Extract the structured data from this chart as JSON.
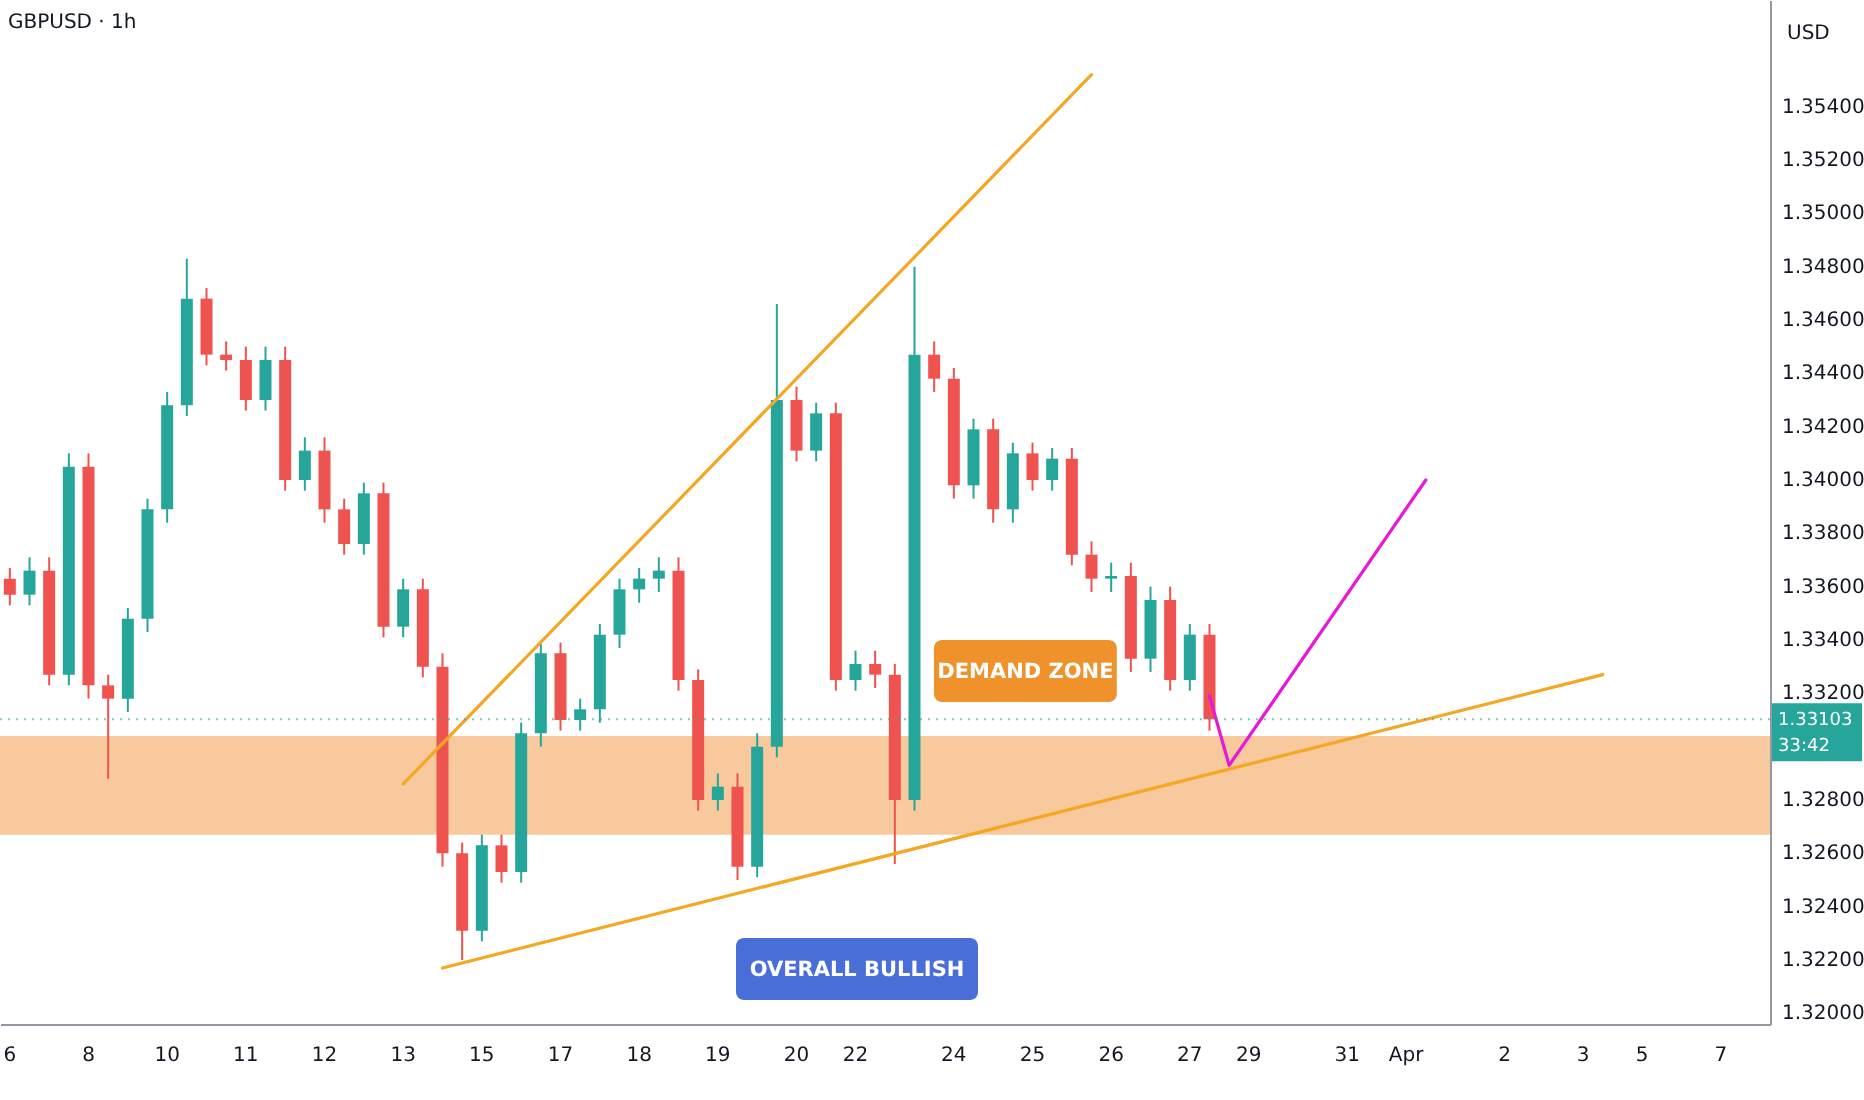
{
  "chart_data": {
    "type": "candlestick",
    "title": "GBPUSD · 1h",
    "ylabel": "USD",
    "categories": [
      "6",
      null,
      null,
      null,
      "8",
      null,
      null,
      null,
      "10",
      null,
      null,
      null,
      "11",
      null,
      null,
      null,
      "12",
      null,
      null,
      null,
      "13",
      null,
      null,
      null,
      "15",
      null,
      null,
      null,
      "17",
      null,
      null,
      null,
      "18",
      null,
      null,
      null,
      "19",
      null,
      null,
      null,
      "20",
      null,
      null,
      "22",
      null,
      null,
      null,
      null,
      "24",
      null,
      null,
      null,
      "25",
      null,
      null,
      null,
      "26",
      null,
      null,
      null,
      "27",
      null,
      null,
      "29",
      null,
      null,
      null,
      null,
      "31",
      null,
      null,
      "Apr",
      null,
      null,
      null,
      null,
      "2",
      null,
      null,
      null,
      "3",
      null,
      null,
      "5",
      null,
      null,
      null,
      "7",
      null,
      null
    ],
    "ohlc": [
      [
        1.3363,
        1.3367,
        1.3353,
        1.3357
      ],
      [
        1.3357,
        1.3371,
        1.3353,
        1.3366
      ],
      [
        1.3366,
        1.3371,
        1.3323,
        1.3327
      ],
      [
        1.3327,
        1.341,
        1.3323,
        1.3405
      ],
      [
        1.3405,
        1.341,
        1.3318,
        1.3323
      ],
      [
        1.3323,
        1.3327,
        1.3288,
        1.3318
      ],
      [
        1.3318,
        1.3352,
        1.3313,
        1.3348
      ],
      [
        1.3348,
        1.3393,
        1.3343,
        1.3389
      ],
      [
        1.3389,
        1.3433,
        1.3384,
        1.3428
      ],
      [
        1.3428,
        1.3483,
        1.3424,
        1.3468
      ],
      [
        1.3468,
        1.3472,
        1.3443,
        1.3447
      ],
      [
        1.3447,
        1.3452,
        1.3441,
        1.3445
      ],
      [
        1.3445,
        1.345,
        1.3426,
        1.343
      ],
      [
        1.343,
        1.345,
        1.3426,
        1.3445
      ],
      [
        1.3445,
        1.345,
        1.3396,
        1.34
      ],
      [
        1.34,
        1.3416,
        1.3396,
        1.3411
      ],
      [
        1.3411,
        1.3416,
        1.3384,
        1.3389
      ],
      [
        1.3389,
        1.3393,
        1.3372,
        1.3376
      ],
      [
        1.3376,
        1.3399,
        1.3372,
        1.3395
      ],
      [
        1.3395,
        1.3399,
        1.3341,
        1.3345
      ],
      [
        1.3345,
        1.3363,
        1.3341,
        1.3359
      ],
      [
        1.3359,
        1.3363,
        1.3326,
        1.333
      ],
      [
        1.333,
        1.3335,
        1.3255,
        1.326
      ],
      [
        1.326,
        1.3264,
        1.322,
        1.3231
      ],
      [
        1.3231,
        1.3267,
        1.3227,
        1.3263
      ],
      [
        1.3263,
        1.3267,
        1.3249,
        1.3253
      ],
      [
        1.3253,
        1.3309,
        1.3249,
        1.3305
      ],
      [
        1.3305,
        1.3339,
        1.33,
        1.3335
      ],
      [
        1.3335,
        1.3339,
        1.3306,
        1.331
      ],
      [
        1.331,
        1.3318,
        1.3306,
        1.3314
      ],
      [
        1.3314,
        1.3346,
        1.3309,
        1.3342
      ],
      [
        1.3342,
        1.3363,
        1.3337,
        1.3359
      ],
      [
        1.3359,
        1.3367,
        1.3354,
        1.3363
      ],
      [
        1.3363,
        1.3371,
        1.3358,
        1.3366
      ],
      [
        1.3366,
        1.3371,
        1.3321,
        1.3325
      ],
      [
        1.3325,
        1.3329,
        1.3276,
        1.328
      ],
      [
        1.328,
        1.329,
        1.3276,
        1.3285
      ],
      [
        1.3285,
        1.329,
        1.325,
        1.3255
      ],
      [
        1.3255,
        1.3305,
        1.3251,
        1.33
      ],
      [
        1.33,
        1.3466,
        1.3296,
        1.343
      ],
      [
        1.343,
        1.3435,
        1.3407,
        1.3411
      ],
      [
        1.3411,
        1.3429,
        1.3407,
        1.3425
      ],
      [
        1.3425,
        1.3429,
        1.3321,
        1.3325
      ],
      [
        1.3325,
        1.3336,
        1.3321,
        1.3331
      ],
      [
        1.3331,
        1.3336,
        1.3322,
        1.3327
      ],
      [
        1.3327,
        1.3331,
        1.3256,
        1.328
      ],
      [
        1.328,
        1.348,
        1.3276,
        1.3447
      ],
      [
        1.3447,
        1.3452,
        1.3433,
        1.3438
      ],
      [
        1.3438,
        1.3442,
        1.3393,
        1.3398
      ],
      [
        1.3398,
        1.3423,
        1.3393,
        1.3419
      ],
      [
        1.3419,
        1.3423,
        1.3384,
        1.3389
      ],
      [
        1.3389,
        1.3414,
        1.3384,
        1.341
      ],
      [
        1.341,
        1.3414,
        1.3396,
        1.34
      ],
      [
        1.34,
        1.3412,
        1.3396,
        1.3408
      ],
      [
        1.3408,
        1.3412,
        1.3368,
        1.3372
      ],
      [
        1.3372,
        1.3377,
        1.3358,
        1.3363
      ],
      [
        1.3363,
        1.3369,
        1.3358,
        1.3364
      ],
      [
        1.3364,
        1.3369,
        1.3328,
        1.3333
      ],
      [
        1.3333,
        1.336,
        1.3328,
        1.3355
      ],
      [
        1.3355,
        1.336,
        1.3321,
        1.3325
      ],
      [
        1.3325,
        1.3346,
        1.3321,
        1.3342
      ],
      [
        1.3342,
        1.3346,
        1.3306,
        1.33103
      ],
      null,
      null,
      null,
      null,
      null,
      null,
      null,
      null,
      null,
      null,
      null,
      null,
      null,
      null,
      null,
      null,
      null,
      null,
      null,
      null,
      null,
      null,
      null,
      null,
      null,
      null,
      null,
      null
    ],
    "series": [
      {
        "type": "line",
        "color": "#f5a623",
        "values": [
          null,
          null,
          null,
          null,
          null,
          null,
          null,
          null,
          null,
          null,
          null,
          null,
          null,
          null,
          null,
          null,
          null,
          null,
          null,
          null,
          1.3286,
          null,
          null,
          null,
          null,
          null,
          null,
          null,
          null,
          null,
          null,
          null,
          null,
          null,
          null,
          null,
          null,
          null,
          null,
          null,
          null,
          null,
          null,
          null,
          null,
          null,
          null,
          null,
          null,
          null,
          null,
          null,
          null,
          null,
          null,
          1.3552,
          null,
          null,
          null,
          null,
          null,
          null,
          null,
          null,
          null,
          null,
          null,
          null,
          null,
          null,
          null,
          null,
          null,
          null,
          null,
          null,
          null,
          null,
          null,
          null,
          null,
          null,
          null,
          null,
          null,
          null,
          null,
          null,
          null,
          null
        ]
      },
      {
        "type": "line",
        "color": "#f5a623",
        "values": [
          null,
          null,
          null,
          null,
          null,
          null,
          null,
          null,
          null,
          null,
          null,
          null,
          null,
          null,
          null,
          null,
          null,
          null,
          null,
          null,
          null,
          null,
          1.3217,
          null,
          null,
          null,
          null,
          null,
          null,
          null,
          null,
          null,
          null,
          null,
          null,
          null,
          null,
          null,
          null,
          null,
          null,
          null,
          null,
          null,
          null,
          null,
          null,
          null,
          null,
          null,
          null,
          null,
          null,
          null,
          null,
          null,
          null,
          null,
          null,
          null,
          null,
          null,
          null,
          null,
          null,
          null,
          null,
          null,
          null,
          null,
          null,
          null,
          null,
          null,
          null,
          null,
          null,
          null,
          null,
          null,
          null,
          1.3327,
          null,
          null,
          null,
          null,
          null,
          null,
          null,
          null
        ]
      },
      {
        "type": "line",
        "color": "#e619d9",
        "values": [
          null,
          null,
          null,
          null,
          null,
          null,
          null,
          null,
          null,
          null,
          null,
          null,
          null,
          null,
          null,
          null,
          null,
          null,
          null,
          null,
          null,
          null,
          null,
          null,
          null,
          null,
          null,
          null,
          null,
          null,
          null,
          null,
          null,
          null,
          null,
          null,
          null,
          null,
          null,
          null,
          null,
          null,
          null,
          null,
          null,
          null,
          null,
          null,
          null,
          null,
          null,
          null,
          null,
          null,
          null,
          null,
          null,
          null,
          null,
          null,
          null,
          1.3319,
          1.3293,
          null,
          null,
          null,
          null,
          null,
          null,
          null,
          null,
          null,
          1.34,
          null,
          null,
          null,
          null,
          null,
          null,
          null,
          null,
          null,
          null,
          null,
          null,
          null,
          null,
          null,
          null,
          null
        ]
      }
    ],
    "ylim": [
      1.3196,
      1.358
    ],
    "yticks": [
      {
        "value": 1.354,
        "label": "1.35400"
      },
      {
        "value": 1.352,
        "label": "1.35200"
      },
      {
        "value": 1.35,
        "label": "1.35000"
      },
      {
        "value": 1.348,
        "label": "1.34800"
      },
      {
        "value": 1.346,
        "label": "1.34600"
      },
      {
        "value": 1.344,
        "label": "1.34400"
      },
      {
        "value": 1.342,
        "label": "1.34200"
      },
      {
        "value": 1.34,
        "label": "1.34000"
      },
      {
        "value": 1.338,
        "label": "1.33800"
      },
      {
        "value": 1.336,
        "label": "1.33600"
      },
      {
        "value": 1.334,
        "label": "1.33400"
      },
      {
        "value": 1.332,
        "label": "1.33200"
      },
      {
        "value": 1.328,
        "label": "1.32800"
      },
      {
        "value": 1.326,
        "label": "1.32600"
      },
      {
        "value": 1.324,
        "label": "1.32400"
      },
      {
        "value": 1.322,
        "label": "1.32200"
      },
      {
        "value": 1.32,
        "label": "1.32000"
      }
    ],
    "bands": [
      {
        "axis": "y",
        "from": 1.3267,
        "to": 1.3304,
        "color": "#f7c08c"
      }
    ],
    "ref_lines": [
      {
        "axis": "y",
        "value": 1.33103,
        "label": "1.33103",
        "color": "#26a69a",
        "line_style": "dotted"
      }
    ],
    "annotations": [
      "DEMAND ZONE",
      "OVERALL BULLISH",
      "33:42"
    ]
  }
}
